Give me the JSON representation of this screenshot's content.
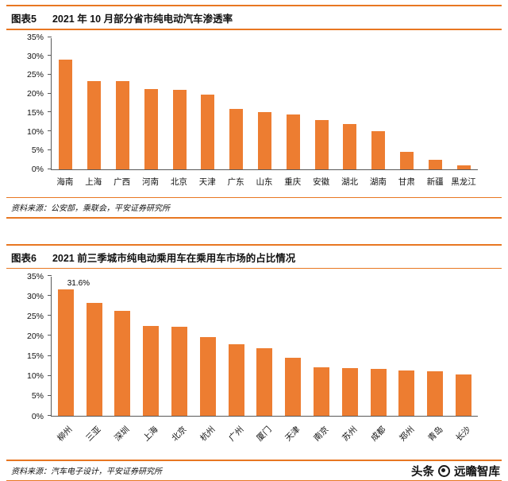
{
  "accent_color": "#ED7D31",
  "rule_color": "#E87722",
  "figures": [
    {
      "label": "图表5",
      "title": "2021 年 10 月部分省市纯电动汽车渗透率",
      "source": "资料来源：公安部，乘联会，平安证券研究所"
    },
    {
      "label": "图表6",
      "title": "2021 前三季城市纯电动乘用车在乘用车市场的占比情况",
      "source": "资料来源：汽车电子设计，平安证券研究所"
    }
  ],
  "chart_data": [
    {
      "type": "bar",
      "title": "2021 年 10 月部分省市纯电动汽车渗透率",
      "categories": [
        "海南",
        "上海",
        "广西",
        "河南",
        "北京",
        "天津",
        "广东",
        "山东",
        "重庆",
        "安徽",
        "湖北",
        "湖南",
        "甘肃",
        "新疆",
        "黑龙江"
      ],
      "values": [
        29.0,
        23.2,
        23.4,
        21.2,
        21.0,
        19.8,
        16.0,
        15.0,
        14.5,
        13.0,
        12.0,
        10.0,
        4.5,
        2.5,
        1.0
      ],
      "xlabel": "",
      "ylabel": "",
      "ylim": [
        0,
        35
      ],
      "yticks": [
        0,
        5,
        10,
        15,
        20,
        25,
        30,
        35
      ],
      "ytick_format": "percent",
      "bar_color": "#ED7D31",
      "grid": false,
      "legend": false,
      "xtick_rotation": 0
    },
    {
      "type": "bar",
      "title": "2021 前三季城市纯电动乘用车在乘用车市场的占比情况",
      "categories": [
        "柳州",
        "三亚",
        "深圳",
        "上海",
        "北京",
        "杭州",
        "广州",
        "厦门",
        "天津",
        "南京",
        "苏州",
        "成都",
        "郑州",
        "青岛",
        "长沙"
      ],
      "values": [
        31.6,
        28.2,
        26.2,
        22.4,
        22.2,
        19.7,
        18.0,
        17.0,
        14.5,
        12.2,
        12.0,
        11.8,
        11.3,
        11.2,
        10.3
      ],
      "annotation": {
        "index": 0,
        "text": "31.6%"
      },
      "xlabel": "",
      "ylabel": "",
      "ylim": [
        0,
        35
      ],
      "yticks": [
        0,
        5,
        10,
        15,
        20,
        25,
        30,
        35
      ],
      "ytick_format": "percent",
      "bar_color": "#ED7D31",
      "grid": false,
      "legend": false,
      "xtick_rotation": -45
    }
  ],
  "watermark": {
    "prefix": "头条",
    "logo": "yuanzhan-zhiku-logo",
    "suffix": "远瞻智库"
  }
}
